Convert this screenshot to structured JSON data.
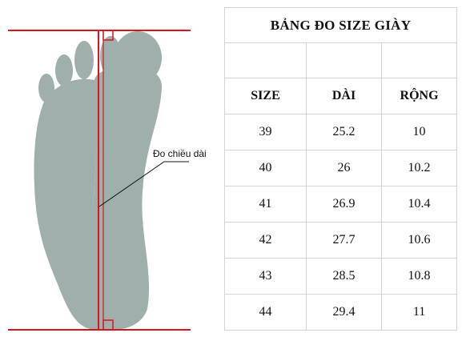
{
  "figure": {
    "measure_label": "Đo chiều dài",
    "colors": {
      "foot": "#9fb0ac",
      "measure_line": "#d9151f",
      "leader": "#111111"
    }
  },
  "table": {
    "title": "BẢNG ĐO SIZE GIÀY",
    "headers": [
      "SIZE",
      "DÀI",
      "RỘNG"
    ],
    "rows": [
      [
        "39",
        "25.2",
        "10"
      ],
      [
        "40",
        "26",
        "10.2"
      ],
      [
        "41",
        "26.9",
        "10.4"
      ],
      [
        "42",
        "27.7",
        "10.6"
      ],
      [
        "43",
        "28.5",
        "10.8"
      ],
      [
        "44",
        "29.4",
        "11"
      ]
    ]
  }
}
